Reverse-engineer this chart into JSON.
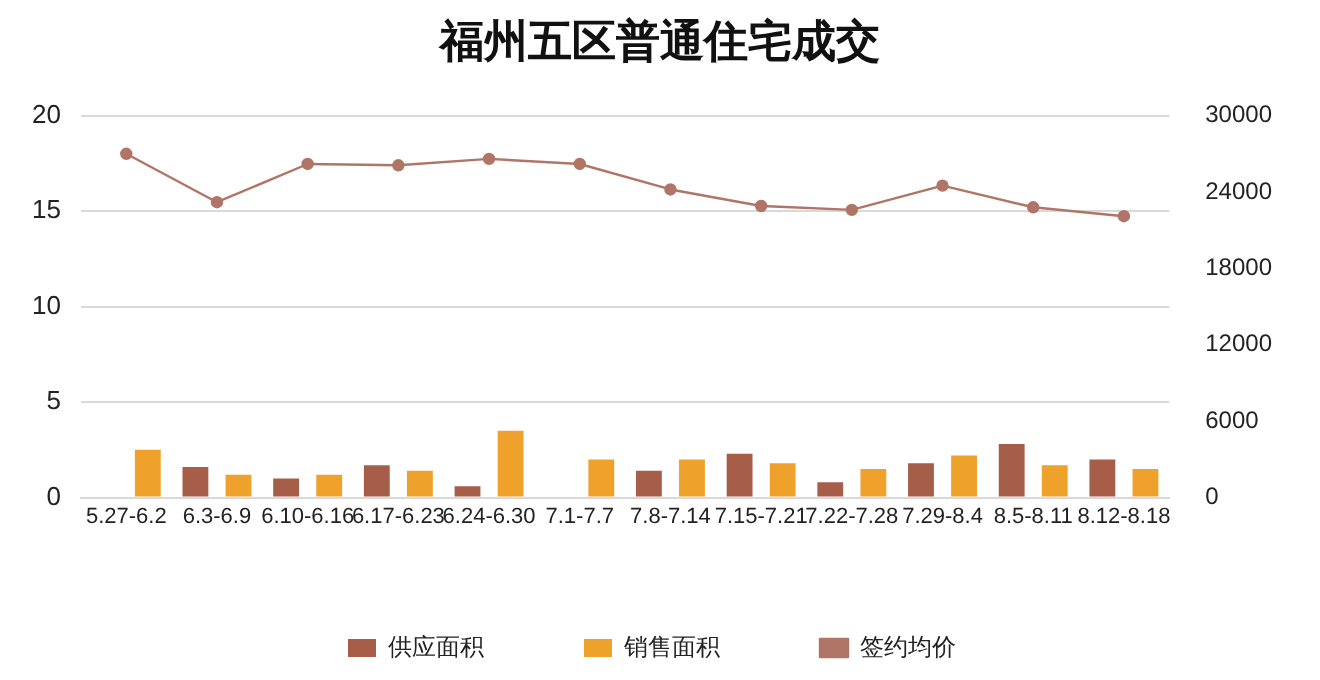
{
  "chart_data": {
    "type": "bar",
    "title": "福州五区普通住宅成交",
    "categories": [
      "5.27-6.2",
      "6.3-6.9",
      "6.10-6.16",
      "6.17-6.23",
      "6.24-6.30",
      "7.1-7.7",
      "7.8-7.14",
      "7.15-7.21",
      "7.22-7.28",
      "7.29-8.4",
      "8.5-8.11",
      "8.12-8.18"
    ],
    "series": [
      {
        "name": "供应面积",
        "color": "#a65e49",
        "values": [
          0,
          1.6,
          1.0,
          1.7,
          0.6,
          0,
          1.4,
          2.3,
          0.8,
          1.8,
          2.8,
          2.0
        ]
      },
      {
        "name": "销售面积",
        "color": "#eea22c",
        "values": [
          2.5,
          1.2,
          1.2,
          1.4,
          3.5,
          2.0,
          2.0,
          1.8,
          1.5,
          2.2,
          1.7,
          1.5
        ]
      },
      {
        "name": "签约均价",
        "type": "line",
        "axis": "y2",
        "color": "#b07566",
        "values": [
          27000,
          23200,
          26200,
          26100,
          26600,
          26200,
          24200,
          22900,
          22600,
          24500,
          22800,
          22100
        ]
      }
    ],
    "ylim": [
      0,
      20
    ],
    "yticks": [
      0,
      5,
      10,
      15,
      20
    ],
    "y2lim": [
      0,
      30000
    ],
    "y2ticks": [
      0,
      6000,
      12000,
      18000,
      24000,
      30000
    ],
    "grid": "y",
    "legend": "bottom",
    "marker": "circle"
  }
}
